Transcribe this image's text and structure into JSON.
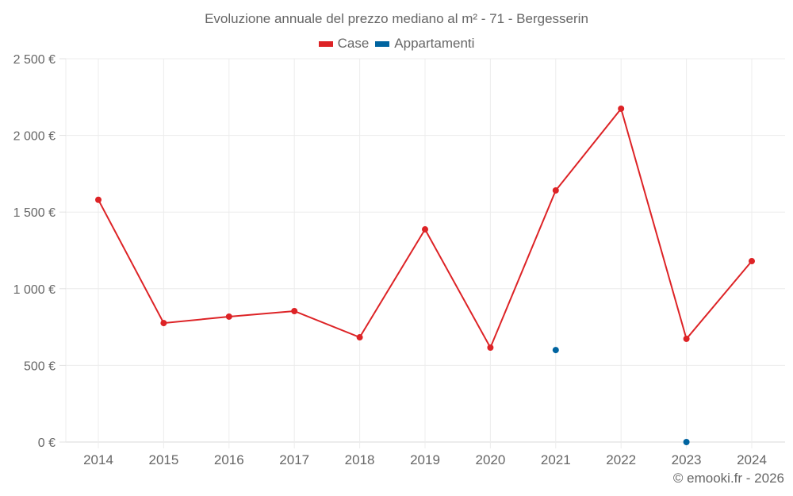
{
  "chart_data": {
    "type": "line",
    "title": "Evoluzione annuale del prezzo mediano al m² - 71 - Bergesserin",
    "xlabel": "",
    "ylabel": "",
    "ylim": [
      0,
      2500
    ],
    "yticks": [
      0,
      500,
      1000,
      1500,
      2000,
      2500
    ],
    "ytick_labels": [
      "0 €",
      "500 €",
      "1 000 €",
      "1 500 €",
      "2 000 €",
      "2 500 €"
    ],
    "categories": [
      "2014",
      "2015",
      "2016",
      "2017",
      "2018",
      "2019",
      "2020",
      "2021",
      "2022",
      "2023",
      "2024"
    ],
    "grid": true,
    "legend_position": "top",
    "series": [
      {
        "name": "Case",
        "color": "#dd2326",
        "values": [
          1580,
          776,
          818,
          854,
          683,
          1387,
          616,
          1641,
          2174,
          673,
          1180
        ]
      },
      {
        "name": "Appartamenti",
        "color": "#0064a0",
        "values": [
          null,
          null,
          null,
          null,
          null,
          null,
          null,
          600,
          null,
          0,
          null
        ]
      }
    ]
  },
  "legend": {
    "items": [
      {
        "label": "Case",
        "color": "#dd2326"
      },
      {
        "label": "Appartamenti",
        "color": "#0064a0"
      }
    ]
  },
  "credit": "© emooki.fr - 2026"
}
